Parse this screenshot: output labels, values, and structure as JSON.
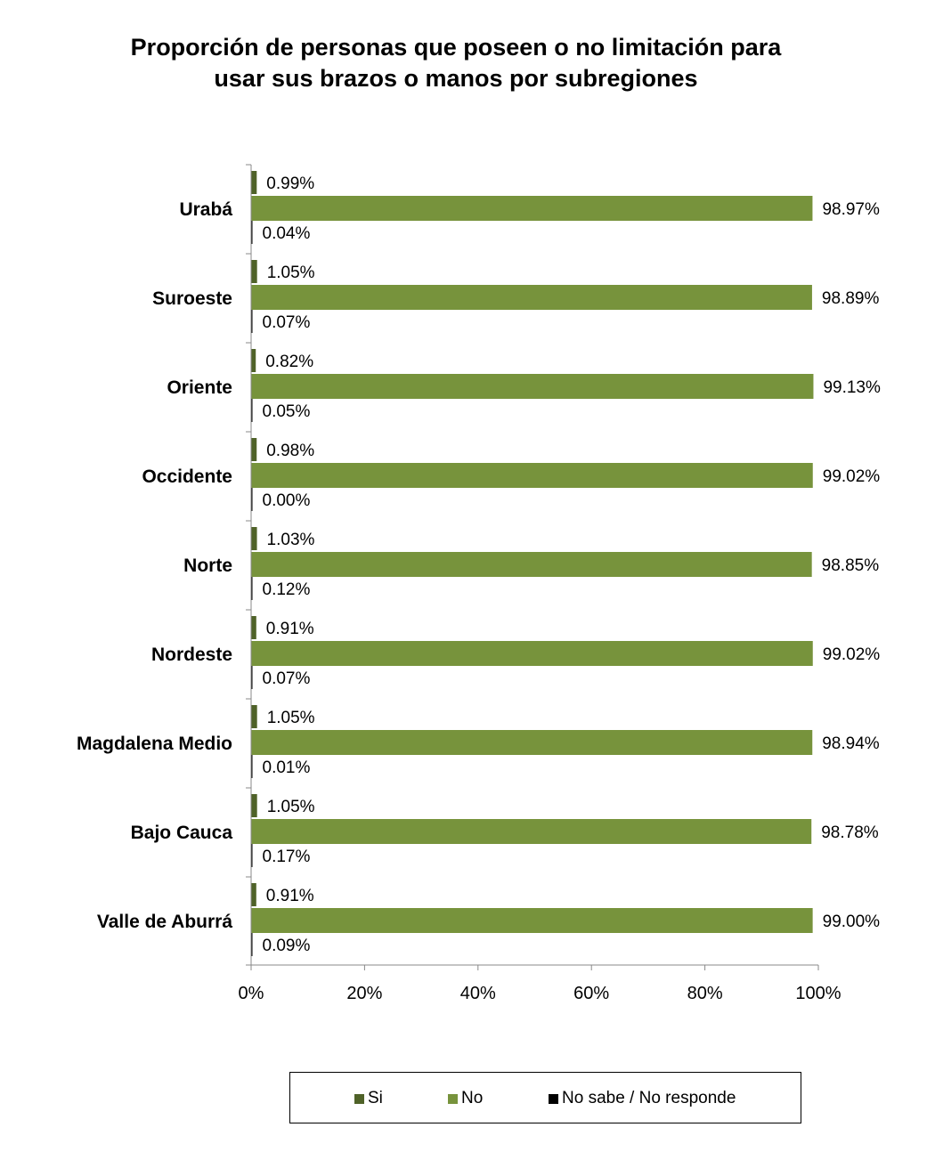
{
  "chart_data": {
    "type": "bar",
    "orientation": "horizontal",
    "title": "Proporción de personas que poseen o no limitación para usar sus brazos o manos por subregiones",
    "title_lines": [
      "Proporción de personas que poseen o no limitación para",
      "usar sus brazos o manos por subregiones"
    ],
    "categories": [
      "Urabá",
      "Suroeste",
      "Oriente",
      "Occidente",
      "Norte",
      "Nordeste",
      "Magdalena Medio",
      "Bajo Cauca",
      "Valle de Aburrá"
    ],
    "series": [
      {
        "name": "Si",
        "color": "#4f6228",
        "values": [
          0.99,
          1.05,
          0.82,
          0.98,
          1.03,
          0.91,
          1.05,
          1.05,
          0.91
        ],
        "labels": [
          "0.99%",
          "1.05%",
          "0.82%",
          "0.98%",
          "1.03%",
          "0.91%",
          "1.05%",
          "1.05%",
          "0.91%"
        ]
      },
      {
        "name": "No",
        "color": "#77933c",
        "values": [
          98.97,
          98.89,
          99.13,
          99.02,
          98.85,
          99.02,
          98.94,
          98.78,
          99.0
        ],
        "labels": [
          "98.97%",
          "98.89%",
          "99.13%",
          "99.02%",
          "98.85%",
          "99.02%",
          "98.94%",
          "98.78%",
          "99.00%"
        ]
      },
      {
        "name": "No sabe / No responde",
        "color": "#000000",
        "values": [
          0.04,
          0.07,
          0.05,
          0.0,
          0.12,
          0.07,
          0.01,
          0.17,
          0.09
        ],
        "labels": [
          "0.04%",
          "0.07%",
          "0.05%",
          "0.00%",
          "0.12%",
          "0.07%",
          "0.01%",
          "0.17%",
          "0.09%"
        ]
      }
    ],
    "xlim": [
      0,
      100
    ],
    "x_ticks": [
      0,
      20,
      40,
      60,
      80,
      100
    ],
    "x_tick_labels": [
      "0%",
      "20%",
      "40%",
      "60%",
      "80%",
      "100%"
    ],
    "grid": false,
    "legend_position": "bottom"
  }
}
